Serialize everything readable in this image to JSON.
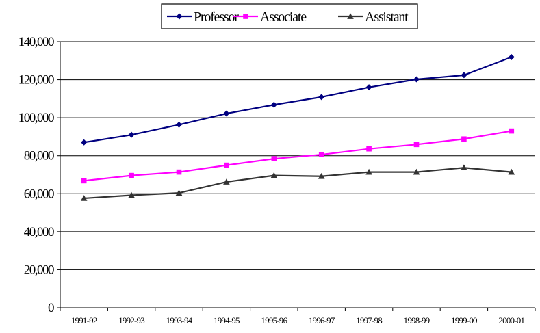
{
  "chart_data": {
    "type": "line",
    "categories": [
      "1991-92",
      "1992-93",
      "1993-94",
      "1994-95",
      "1995-96",
      "1996-97",
      "1997-98",
      "1998-99",
      "1999-00",
      "2000-01"
    ],
    "series": [
      {
        "name": "Professor",
        "color": "#000080",
        "marker": "diamond",
        "values": [
          87000,
          91000,
          96300,
          102200,
          106800,
          110900,
          116000,
          120200,
          122400,
          131900
        ]
      },
      {
        "name": "Associate",
        "color": "#ff00ff",
        "marker": "square",
        "values": [
          66800,
          69600,
          71400,
          75000,
          78400,
          80600,
          83600,
          85900,
          88800,
          93000
        ]
      },
      {
        "name": "Assistant",
        "color": "#333333",
        "marker": "triangle",
        "values": [
          57600,
          59200,
          60400,
          66200,
          69600,
          69200,
          71400,
          71400,
          73700,
          71400
        ]
      }
    ],
    "title": "",
    "xlabel": "",
    "ylabel": "",
    "ylim": [
      0,
      140000
    ],
    "yticks": [
      "0",
      "20,000",
      "40,000",
      "60,000",
      "80,000",
      "100,000",
      "120,000",
      "140,000"
    ],
    "grid": true,
    "legend": "top"
  }
}
